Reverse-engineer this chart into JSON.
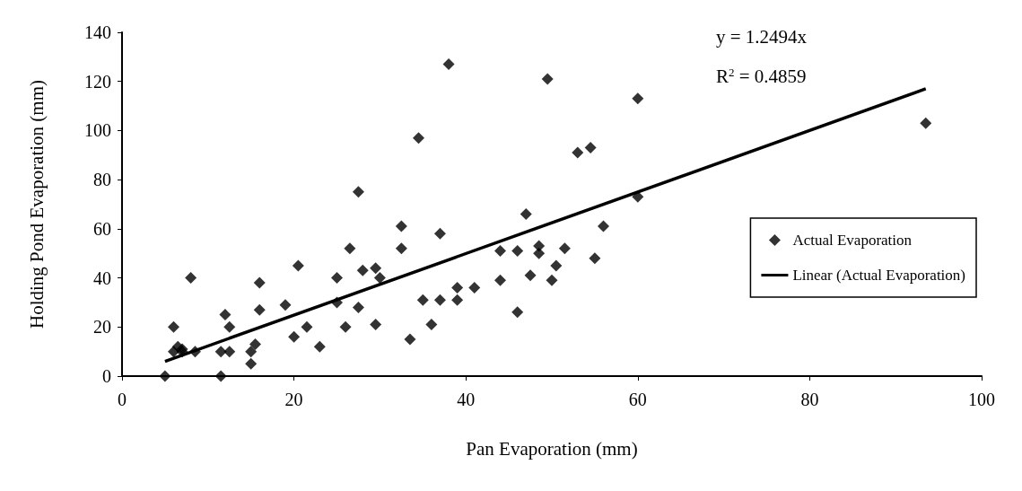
{
  "chart_data": {
    "type": "scatter",
    "xlabel": "Pan Evaporation (mm)",
    "ylabel": "Holding Pond Evaporation (mm)",
    "xlim": [
      0,
      100
    ],
    "xticks": [
      0,
      20,
      40,
      60,
      80,
      100
    ],
    "ylim": [
      0,
      140
    ],
    "yticks": [
      0,
      20,
      40,
      60,
      80,
      100,
      120,
      140
    ],
    "grid": false,
    "legend": "right",
    "annotations": [
      "y = 1.2494x",
      "R$^{2}$ = 0.4859"
    ],
    "series": [
      {
        "name": "Actual Evaporation",
        "marker": "diamond",
        "color": "#000000",
        "x": [
          5,
          6,
          6,
          6.5,
          7,
          7,
          8,
          8.5,
          11.5,
          11.5,
          12,
          12.5,
          12.5,
          15,
          15,
          15.5,
          16,
          16,
          19,
          20,
          20.5,
          21.5,
          23,
          25,
          25,
          26,
          26.5,
          27.5,
          27.5,
          28,
          29.5,
          30,
          29.5,
          32.5,
          32.5,
          33.5,
          34.5,
          35,
          36,
          37,
          37,
          38,
          39,
          39,
          41,
          44,
          44,
          46,
          46,
          47,
          47.5,
          48.5,
          48.5,
          49.5,
          50,
          50.5,
          51.5,
          53,
          54.5,
          55,
          56,
          60,
          60,
          93.5
        ],
        "values": [
          0,
          10,
          20,
          12,
          11,
          10,
          40,
          10,
          10,
          0,
          25,
          20,
          10,
          5,
          10,
          13,
          38,
          27,
          29,
          16,
          45,
          20,
          12,
          40,
          30,
          20,
          52,
          75,
          28,
          43,
          44,
          40,
          21,
          52,
          61,
          15,
          97,
          31,
          21,
          58,
          31,
          127,
          36,
          31,
          36,
          51,
          39,
          51,
          26,
          66,
          41,
          50,
          53,
          121,
          39,
          45,
          52,
          91,
          93,
          48,
          61,
          113,
          73,
          103
        ]
      },
      {
        "name": "Linear (Actual Evaporation)",
        "type": "line",
        "marker": "none",
        "line_style": "solid",
        "color": "#000000",
        "x": [
          5,
          93.5
        ],
        "values": [
          6,
          117
        ]
      }
    ]
  }
}
